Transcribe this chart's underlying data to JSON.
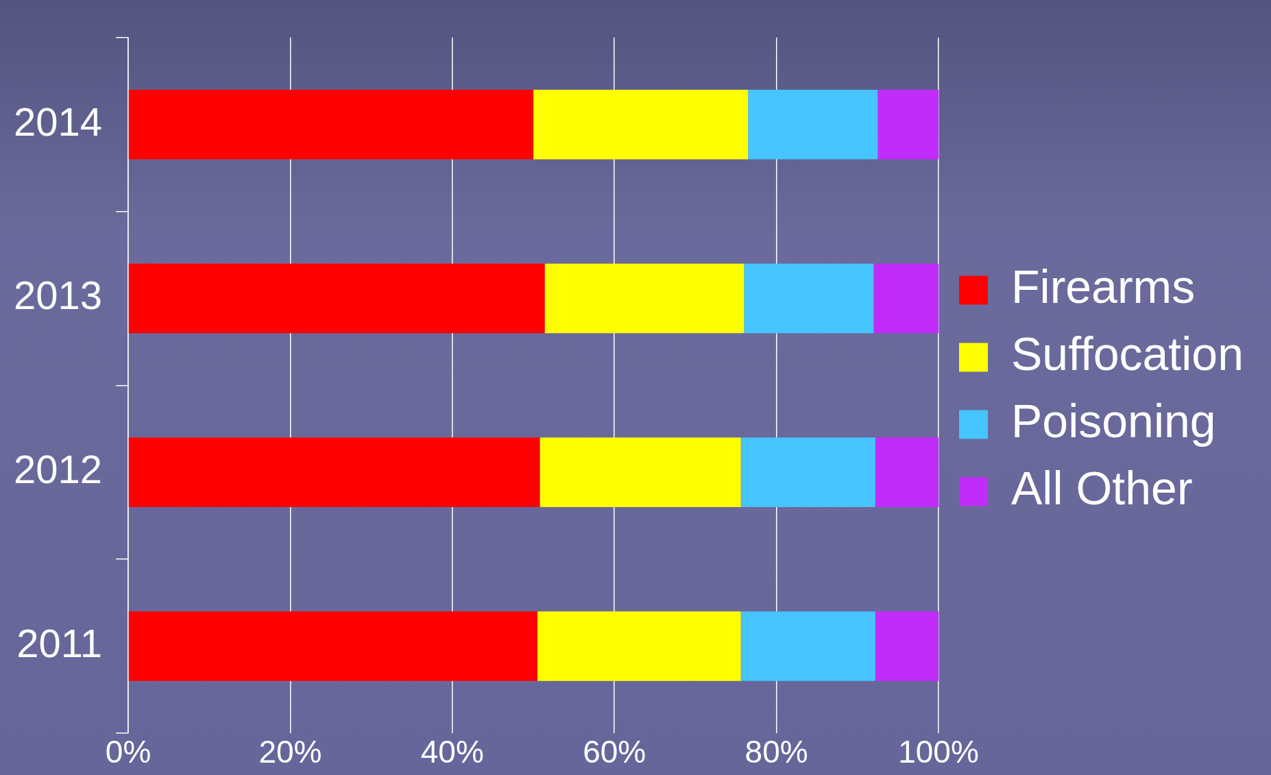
{
  "chart_data": {
    "type": "bar",
    "orientation": "horizontal",
    "stacked": true,
    "categories": [
      "2014",
      "2013",
      "2012",
      "2011"
    ],
    "series": [
      {
        "name": "Firearms",
        "color": "#ff0000",
        "values": [
          50,
          51.4,
          50.8,
          50.5
        ]
      },
      {
        "name": "Suffocation",
        "color": "#ffff00",
        "values": [
          26.5,
          24.6,
          24.8,
          25.1
        ]
      },
      {
        "name": "Poisoning",
        "color": "#45c4fd",
        "values": [
          16,
          16,
          16.6,
          16.6
        ]
      },
      {
        "name": "All Other",
        "color": "#c22cfb",
        "values": [
          7.5,
          8,
          7.8,
          7.8
        ]
      }
    ],
    "xlim": [
      0,
      100
    ],
    "xticks": [
      {
        "value": 0,
        "label": "0%"
      },
      {
        "value": 20,
        "label": "20%"
      },
      {
        "value": 40,
        "label": "40%"
      },
      {
        "value": 60,
        "label": "60%"
      },
      {
        "value": 80,
        "label": "80%"
      },
      {
        "value": 100,
        "label": "100%"
      }
    ],
    "grid": "x",
    "legend": "right"
  }
}
